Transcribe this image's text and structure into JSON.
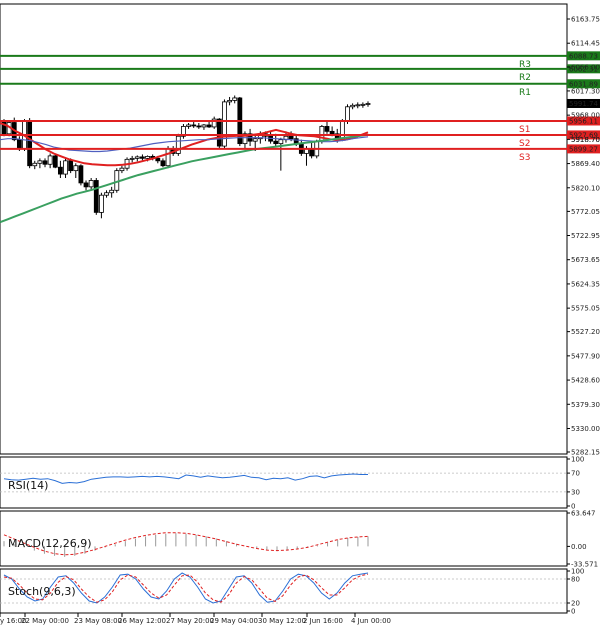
{
  "chart_data": {
    "type": "candlestick",
    "price_axis": {
      "ticks": [
        6163.75,
        6114.45,
        6066.0,
        6017.3,
        5968.0,
        5918.7,
        5869.4,
        5820.1,
        5772.05,
        5722.95,
        5673.65,
        5624.35,
        5575.05,
        5527.2,
        5477.9,
        5428.6,
        5379.3,
        5330.0,
        5282.15
      ],
      "ylim": [
        5282.15,
        6163.75
      ]
    },
    "time_axis": {
      "ticks": [
        "y 16:00",
        "22 May 00:00",
        "23 May 08:00",
        "26 May 12:00",
        "27 May 20:00",
        "29 May 04:00",
        "30 May 12:00",
        "2 Jun 16:00",
        "4 Jun 00:00"
      ]
    },
    "levels": [
      {
        "name": "R3",
        "value": 6088.73,
        "color": "#1a7a1a"
      },
      {
        "name": "R2",
        "value": 6062.31,
        "color": "#1a7a1a"
      },
      {
        "name": "R1",
        "value": 6031.89,
        "color": "#1a7a1a"
      },
      {
        "name": "S1",
        "value": 5956.11,
        "color": "#e02020"
      },
      {
        "name": "S2",
        "value": 5927.69,
        "color": "#e02020"
      },
      {
        "name": "S3",
        "value": 5899.27,
        "color": "#e02020"
      }
    ],
    "price_tags": [
      {
        "value": "5991.74",
        "style": "current"
      },
      {
        "value": "5956.11",
        "style": "red"
      },
      {
        "value": "5927.69",
        "style": "red"
      },
      {
        "value": "5918.70",
        "style": "plain"
      },
      {
        "value": "5899.27",
        "style": "red"
      }
    ],
    "candles": [
      [
        5955,
        5960,
        5925,
        5930
      ],
      [
        5930,
        5958,
        5925,
        5953
      ],
      [
        5953,
        5963,
        5915,
        5918
      ],
      [
        5918,
        5925,
        5895,
        5900
      ],
      [
        5900,
        5960,
        5895,
        5955
      ],
      [
        5955,
        5962,
        5860,
        5865
      ],
      [
        5865,
        5875,
        5858,
        5870
      ],
      [
        5870,
        5880,
        5860,
        5875
      ],
      [
        5875,
        5880,
        5862,
        5868
      ],
      [
        5868,
        5890,
        5860,
        5885
      ],
      [
        5885,
        5888,
        5860,
        5862
      ],
      [
        5862,
        5875,
        5840,
        5848
      ],
      [
        5848,
        5880,
        5840,
        5875
      ],
      [
        5875,
        5880,
        5850,
        5855
      ],
      [
        5855,
        5870,
        5840,
        5865
      ],
      [
        5865,
        5868,
        5825,
        5830
      ],
      [
        5830,
        5835,
        5815,
        5822
      ],
      [
        5822,
        5840,
        5815,
        5835
      ],
      [
        5835,
        5840,
        5765,
        5770
      ],
      [
        5770,
        5810,
        5758,
        5805
      ],
      [
        5805,
        5815,
        5800,
        5810
      ],
      [
        5810,
        5822,
        5800,
        5815
      ],
      [
        5815,
        5860,
        5810,
        5855
      ],
      [
        5855,
        5865,
        5850,
        5860
      ],
      [
        5860,
        5882,
        5855,
        5878
      ],
      [
        5878,
        5885,
        5872,
        5880
      ],
      [
        5880,
        5886,
        5874,
        5883
      ],
      [
        5883,
        5888,
        5876,
        5880
      ],
      [
        5880,
        5886,
        5874,
        5884
      ],
      [
        5884,
        5888,
        5876,
        5880
      ],
      [
        5880,
        5885,
        5870,
        5875
      ],
      [
        5875,
        5880,
        5862,
        5865
      ],
      [
        5865,
        5905,
        5860,
        5900
      ],
      [
        5900,
        5905,
        5885,
        5890
      ],
      [
        5890,
        5930,
        5885,
        5925
      ],
      [
        5925,
        5950,
        5920,
        5945
      ],
      [
        5945,
        5952,
        5940,
        5948
      ],
      [
        5948,
        5955,
        5942,
        5946
      ],
      [
        5946,
        5952,
        5940,
        5944
      ],
      [
        5944,
        5950,
        5938,
        5948
      ],
      [
        5948,
        5955,
        5942,
        5944
      ],
      [
        5944,
        5965,
        5940,
        5960
      ],
      [
        5960,
        5962,
        5900,
        5905
      ],
      [
        5905,
        6000,
        5900,
        5995
      ],
      [
        5995,
        6005,
        5988,
        5998
      ],
      [
        5998,
        6008,
        5992,
        6003
      ],
      [
        6003,
        6005,
        5905,
        5910
      ],
      [
        5910,
        5935,
        5900,
        5930
      ],
      [
        5930,
        5940,
        5905,
        5915
      ],
      [
        5915,
        5930,
        5895,
        5920
      ],
      [
        5920,
        5935,
        5910,
        5930
      ],
      [
        5930,
        5935,
        5915,
        5925
      ],
      [
        5925,
        5935,
        5910,
        5915
      ],
      [
        5915,
        5930,
        5905,
        5910
      ],
      [
        5910,
        5922,
        5855,
        5918
      ],
      [
        5918,
        5935,
        5912,
        5925
      ],
      [
        5925,
        5935,
        5915,
        5920
      ],
      [
        5920,
        5928,
        5905,
        5910
      ],
      [
        5910,
        5918,
        5885,
        5890
      ],
      [
        5890,
        5905,
        5865,
        5900
      ],
      [
        5900,
        5912,
        5880,
        5885
      ],
      [
        5885,
        5918,
        5880,
        5915
      ],
      [
        5915,
        5948,
        5910,
        5945
      ],
      [
        5945,
        5955,
        5930,
        5935
      ],
      [
        5935,
        5945,
        5925,
        5930
      ],
      [
        5930,
        5940,
        5912,
        5918
      ],
      [
        5918,
        5960,
        5915,
        5957
      ],
      [
        5957,
        5990,
        5950,
        5985
      ],
      [
        5985,
        5992,
        5980,
        5988
      ],
      [
        5988,
        5994,
        5982,
        5989
      ],
      [
        5989,
        5994,
        5983,
        5990
      ],
      [
        5990,
        5996,
        5985,
        5991.74
      ]
    ],
    "moving_averages": [
      {
        "color": "#e02020",
        "values": [
          5952,
          5946,
          5936,
          5928,
          5918,
          5908,
          5898,
          5890,
          5884,
          5878,
          5874,
          5870,
          5868,
          5867,
          5866,
          5866,
          5867,
          5869,
          5872,
          5876,
          5880,
          5885,
          5890,
          5896,
          5902,
          5908,
          5913,
          5918,
          5921,
          5924,
          5925,
          5926,
          5926,
          5928,
          5930,
          5934,
          5938,
          5934,
          5930,
          5927,
          5926,
          5925,
          5922,
          5919,
          5917,
          5918,
          5921,
          5927,
          5933
        ]
      },
      {
        "color": "#5060c0",
        "values": [
          5918,
          5920,
          5920,
          5918,
          5916,
          5912,
          5908,
          5903,
          5900,
          5897,
          5896,
          5895,
          5894,
          5894,
          5895,
          5897,
          5899,
          5901,
          5904,
          5907,
          5910,
          5912,
          5914,
          5915,
          5916,
          5917,
          5918,
          5918,
          5919,
          5920,
          5921,
          5922,
          5922,
          5922,
          5922,
          5921,
          5920,
          5919,
          5918,
          5917,
          5916,
          5915,
          5914,
          5914,
          5915,
          5917,
          5920,
          5922,
          5924
        ]
      },
      {
        "color": "#3aa060",
        "values": [
          5750,
          5756,
          5762,
          5768,
          5774,
          5780,
          5786,
          5792,
          5798,
          5803,
          5808,
          5812,
          5816,
          5821,
          5826,
          5831,
          5836,
          5841,
          5846,
          5850,
          5854,
          5858,
          5862,
          5866,
          5870,
          5874,
          5877,
          5880,
          5883,
          5886,
          5889,
          5892,
          5895,
          5898,
          5900,
          5902,
          5904,
          5906,
          5908,
          5910,
          5912,
          5914,
          5916,
          5918,
          5920,
          5922,
          5924,
          5926,
          5928
        ]
      }
    ],
    "indicators": [
      {
        "name": "RSI(14)",
        "ticks": [
          "100",
          "70",
          "30",
          "0"
        ],
        "series": [
          {
            "color": "#2a6fd6",
            "values": [
              58,
              56,
              55,
              57,
              59,
              57,
              58,
              54,
              48,
              50,
              49,
              52,
              57,
              59,
              61,
              62,
              62,
              61,
              62,
              63,
              62,
              63,
              62,
              60,
              58,
              66,
              64,
              61,
              64,
              62,
              60,
              61,
              63,
              65,
              61,
              60,
              56,
              59,
              58,
              60,
              55,
              58,
              63,
              64,
              60,
              64,
              66,
              67,
              68,
              67,
              67
            ]
          }
        ]
      },
      {
        "name": "MACD(12,26,9)",
        "ticks": [
          "63.647",
          "0.00",
          "-33.571"
        ],
        "histogram": [
          10,
          4,
          -2,
          -8,
          -14,
          -18,
          -20,
          -18,
          -14,
          -8,
          -2,
          4,
          10,
          15,
          19,
          22,
          24,
          25,
          24,
          22,
          19,
          15,
          10,
          5,
          0,
          -4,
          -7,
          -9,
          -8,
          -6,
          -3,
          2,
          7,
          12,
          16,
          18,
          19
        ],
        "series": [
          {
            "color": "#e02020",
            "values": [
              22,
              14,
              6,
              -2,
              -9,
              -14,
              -16,
              -15,
              -11,
              -6,
              0,
              6,
              12,
              17,
              21,
              24,
              26,
              26,
              25,
              22,
              18,
              14,
              9,
              4,
              0,
              -4,
              -7,
              -8,
              -7,
              -5,
              -2,
              3,
              8,
              13,
              16,
              18,
              19
            ]
          }
        ]
      },
      {
        "name": "Stoch(9,6,3)",
        "ticks": [
          "100",
          "80",
          "20",
          "0"
        ],
        "series": [
          {
            "color": "#2a6fd6",
            "values": [
              90,
              80,
              55,
              35,
              25,
              30,
              60,
              85,
              88,
              70,
              45,
              25,
              20,
              35,
              60,
              90,
              92,
              80,
              55,
              35,
              30,
              50,
              80,
              95,
              85,
              60,
              30,
              20,
              25,
              55,
              85,
              88,
              70,
              40,
              22,
              25,
              50,
              80,
              92,
              88,
              70,
              45,
              30,
              45,
              70,
              88,
              92,
              95
            ]
          },
          {
            "color": "#e02020",
            "values": [
              85,
              82,
              65,
              45,
              30,
              28,
              45,
              72,
              86,
              78,
              55,
              35,
              22,
              28,
              48,
              78,
              90,
              85,
              65,
              45,
              32,
              40,
              65,
              88,
              90,
              72,
              45,
              28,
              22,
              40,
              70,
              86,
              78,
              55,
              32,
              24,
              38,
              65,
              85,
              90,
              78,
              58,
              40,
              40,
              58,
              78,
              88,
              92
            ]
          }
        ]
      }
    ]
  }
}
